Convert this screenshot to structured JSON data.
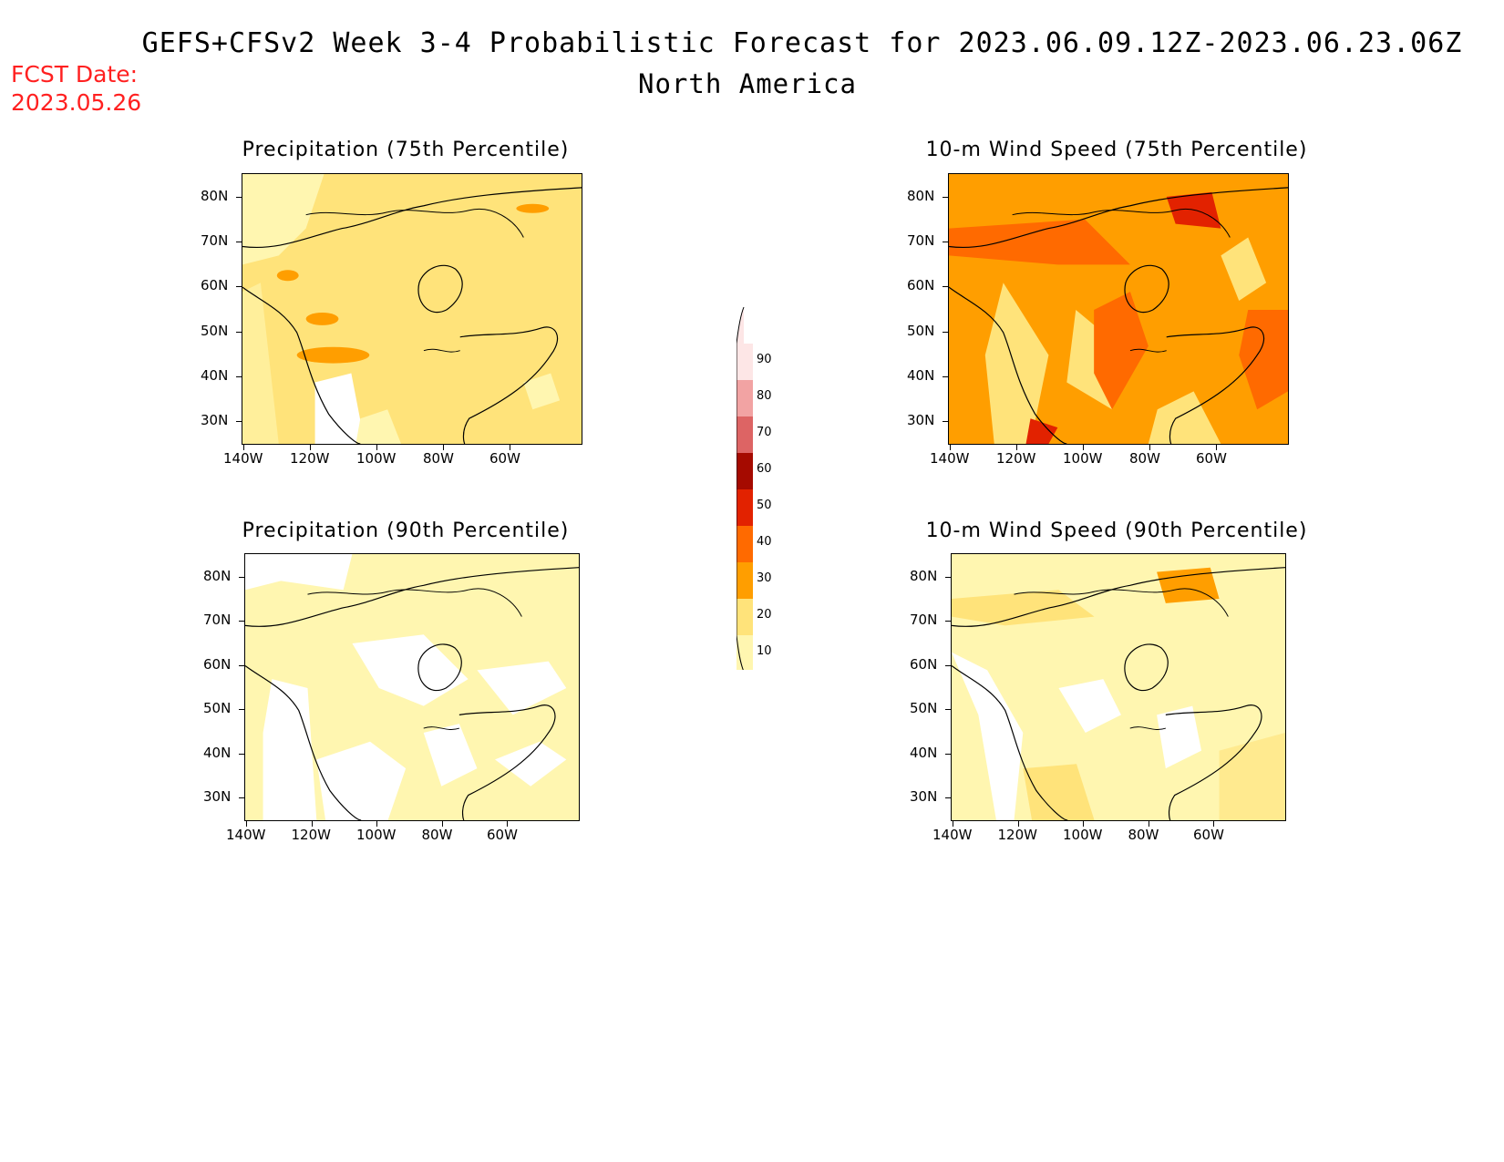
{
  "header": {
    "title": "GEFS+CFSv2 Week 3-4 Probabilistic Forecast for 2023.06.09.12Z-2023.06.23.06Z",
    "subtitle": "North America",
    "fcst_label": "FCST Date:",
    "fcst_value": "2023.05.26"
  },
  "panels": [
    {
      "id": "precip75",
      "title": "Precipitation (75th Percentile)",
      "dominant_level": 20
    },
    {
      "id": "wind75",
      "title": "10-m Wind Speed (75th Percentile)",
      "dominant_level": 30
    },
    {
      "id": "precip90",
      "title": "Precipitation (90th Percentile)",
      "dominant_level": 10
    },
    {
      "id": "wind90",
      "title": "10-m Wind Speed (90th Percentile)",
      "dominant_level": 10
    }
  ],
  "axes": {
    "lat_labels": [
      "80N",
      "70N",
      "60N",
      "50N",
      "40N",
      "30N"
    ],
    "lon_labels": [
      "140W",
      "120W",
      "100W",
      "80W",
      "60W"
    ]
  },
  "colorbar": {
    "levels": [
      "90",
      "80",
      "70",
      "60",
      "50",
      "40",
      "30",
      "20",
      "10"
    ],
    "colors": [
      "#fde6e6",
      "#f2a3a3",
      "#dd6464",
      "#a50a00",
      "#e22200",
      "#ff6a00",
      "#ff9e00",
      "#ffe37a",
      "#fff6b0"
    ]
  }
}
